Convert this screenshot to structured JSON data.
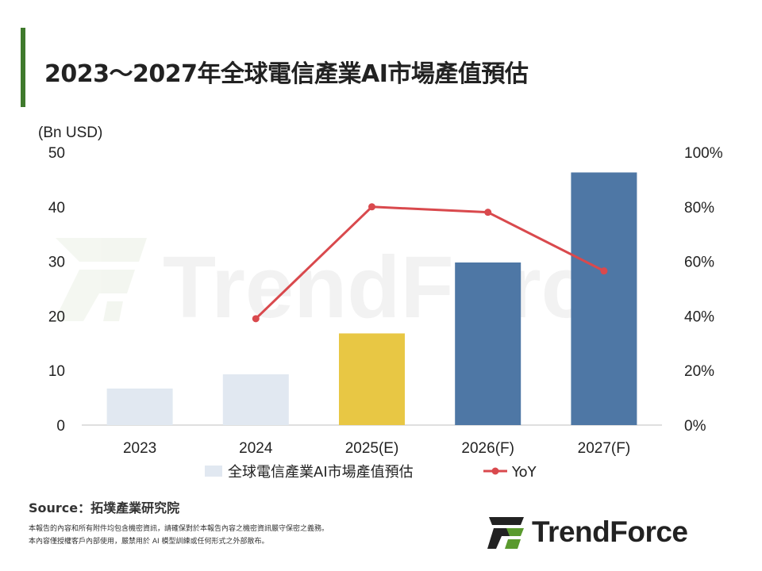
{
  "title": "2023～2027年全球電信產業AI市場產值預估",
  "watermark": "TrendForce",
  "chart_data": {
    "type": "bar",
    "categories": [
      "2023",
      "2024",
      "2025(E)",
      "2026(F)",
      "2027(F)"
    ],
    "series": [
      {
        "name": "全球電信產業AI市場產值預估",
        "type": "bar",
        "axis": "left",
        "values": [
          6.7,
          9.3,
          16.8,
          29.8,
          46.3
        ],
        "colors": [
          "#e1e8f1",
          "#e1e8f1",
          "#e8c744",
          "#4e77a5",
          "#4e77a5"
        ]
      },
      {
        "name": "YoY",
        "type": "line",
        "axis": "right",
        "values": [
          null,
          0.39,
          0.8,
          0.78,
          0.565
        ],
        "color": "#d9494d"
      }
    ],
    "y_unit": "(Bn USD)",
    "ylim": [
      0,
      50
    ],
    "yticks": [
      "0",
      "10",
      "20",
      "30",
      "40",
      "50"
    ],
    "y2lim": [
      0,
      1
    ],
    "y2ticks": [
      "0%",
      "20%",
      "40%",
      "60%",
      "80%",
      "100%"
    ],
    "grid": false,
    "legend_position": "bottom"
  },
  "source": "Source：拓墣產業研究院",
  "disclaimer_lines": [
    "本報告的內容和所有附件均包含機密資訊，請確保對於本報告內容之機密資訊嚴守保密之義務。",
    "本內容僅授權客戶內部使用，嚴禁用於 AI 模型訓練或任何形式之外部散布。"
  ],
  "logo_text": "TrendForce",
  "colors": {
    "accent": "#3f7a2c",
    "text": "#222222"
  }
}
